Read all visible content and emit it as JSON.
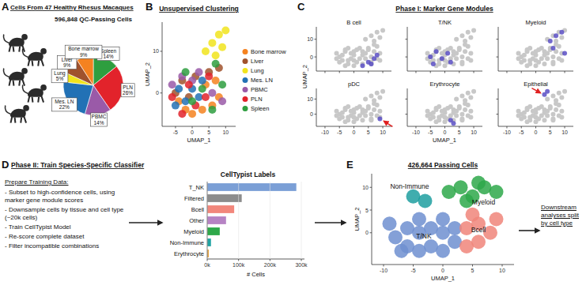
{
  "panel_labels": [
    "A",
    "B",
    "C",
    "D",
    "E"
  ],
  "panel_c": {
    "title": "Phase I: Marker Gene Modules",
    "xlabel": "UMAP_1",
    "ylabel": "UMAP_2"
  },
  "panel_d": {
    "title": "Phase II: Train Species-Specific Classifier",
    "list_title": "Prepare Training Data:",
    "items": [
      "- Subset to high-confidence cells, using marker gene module scores",
      "- Downsample cells by tissue and cell type (~20k cells)",
      "- Train CellTypist Model",
      "- Re-score complete dataset",
      "- Filter incompatible combinations"
    ]
  },
  "panel_e_note": "Downstream analyses split by cell type",
  "chart_data": [
    {
      "type": "pie",
      "title": "Cells From 47 Healthy Rhesus Macaques",
      "subtitle": "596,848 QC-Passing Cells",
      "categories": [
        "Spleen",
        "PLN",
        "PBMC",
        "Mes. LN",
        "Lung",
        "Liver",
        "Bone marrow"
      ],
      "values": [
        14,
        26,
        14,
        22,
        5,
        9,
        9
      ],
      "value_labels": [
        "14%",
        "26%",
        "14%",
        "22%",
        "5%",
        "9%",
        "9%"
      ],
      "colors": [
        "#2e9e3f",
        "#e2232b",
        "#9a5aa8",
        "#2271b5",
        "#f1e41d",
        "#a0522d",
        "#f58220"
      ],
      "data_labels": true
    },
    {
      "type": "scatter",
      "title": "Unsupervised Clustering",
      "xlabel": "UMAP_1",
      "ylabel": "UMAP_2",
      "xlim": [
        -9,
        13
      ],
      "ylim": [
        -8,
        17
      ],
      "xticks": [
        -5,
        0,
        5,
        10
      ],
      "yticks": [
        0,
        10
      ],
      "legend": "right",
      "series": [
        {
          "name": "Bone marrow",
          "color": "#f58220",
          "x": [
            -2,
            0,
            3,
            6,
            8,
            4,
            -4,
            7
          ],
          "values": [
            -4,
            -5,
            -4,
            -3,
            -1,
            2,
            -2,
            3
          ]
        },
        {
          "name": "Liver",
          "color": "#a0522d",
          "x": [
            -5,
            -3,
            1,
            -1,
            5,
            8
          ],
          "values": [
            0,
            3,
            4,
            -1,
            5,
            6
          ]
        },
        {
          "name": "Lung",
          "color": "#f1e41d",
          "x": [
            4,
            6,
            8,
            10,
            7,
            9
          ],
          "values": [
            10,
            12,
            14,
            15,
            9,
            11
          ]
        },
        {
          "name": "Mes. LN",
          "color": "#2271b5",
          "x": [
            -4,
            -2,
            0,
            2,
            -5,
            3
          ],
          "values": [
            1,
            -2,
            1,
            -1,
            -3,
            3
          ]
        },
        {
          "name": "PBMC",
          "color": "#9a5aa8",
          "x": [
            -3,
            0,
            2,
            6,
            9,
            -6
          ],
          "values": [
            4,
            3,
            5,
            0,
            -2,
            2
          ]
        },
        {
          "name": "PLN",
          "color": "#e2232b",
          "x": [
            -6,
            -1,
            1,
            4,
            -3,
            5
          ],
          "values": [
            -1,
            2,
            -3,
            -1,
            -5,
            4
          ]
        },
        {
          "name": "Spleen",
          "color": "#2e9e3f",
          "x": [
            -2,
            3,
            6,
            9,
            0,
            7
          ],
          "values": [
            5,
            1,
            -4,
            2,
            -2,
            7
          ]
        }
      ]
    },
    {
      "type": "scatter",
      "title": "B cell",
      "xlim": [
        -13,
        13
      ],
      "ylim": [
        -8,
        17
      ],
      "xticks": [
        -10,
        -5,
        0,
        5,
        10
      ],
      "yticks": [
        0,
        10
      ],
      "tick_labels": "y",
      "color": "#5b4fc4",
      "x": [
        3,
        5,
        7,
        6,
        8
      ],
      "values": [
        -5,
        -3,
        -1,
        -4,
        1
      ]
    },
    {
      "type": "scatter",
      "title": "T/NK",
      "xlim": [
        -13,
        13
      ],
      "ylim": [
        -8,
        17
      ],
      "xticks": [
        -10,
        -5,
        0,
        5,
        10
      ],
      "yticks": [
        0,
        10
      ],
      "tick_labels": false,
      "color": "#5b4fc4",
      "x": [
        -5,
        -3,
        -1,
        1,
        -4,
        2
      ],
      "values": [
        0,
        3,
        -1,
        2,
        -4,
        -3
      ]
    },
    {
      "type": "scatter",
      "title": "Myeloid",
      "xlim": [
        -13,
        13
      ],
      "ylim": [
        -8,
        17
      ],
      "xticks": [
        -10,
        -5,
        0,
        5,
        10
      ],
      "yticks": [
        0,
        10
      ],
      "tick_labels": false,
      "color": "#5b4fc4",
      "x": [
        5,
        7,
        9,
        6,
        10
      ],
      "values": [
        9,
        12,
        14,
        5,
        2
      ]
    },
    {
      "type": "scatter",
      "title": "pDC",
      "xlim": [
        -13,
        13
      ],
      "ylim": [
        -8,
        17
      ],
      "xticks": [
        -10,
        -5,
        0,
        5,
        10
      ],
      "yticks": [
        0,
        10
      ],
      "tick_labels": true,
      "color": "#5b4fc4",
      "x": [
        9
      ],
      "values": [
        -3
      ]
    },
    {
      "type": "scatter",
      "title": "Erythrocyte",
      "xlim": [
        -13,
        13
      ],
      "ylim": [
        -8,
        17
      ],
      "xticks": [
        -10,
        -5,
        0,
        5,
        10
      ],
      "yticks": [
        0,
        10
      ],
      "tick_labels": "x",
      "color": "#5b4fc4",
      "x": [
        2,
        3
      ],
      "values": [
        -4,
        -6
      ]
    },
    {
      "type": "scatter",
      "title": "Epithelial",
      "xlim": [
        -13,
        13
      ],
      "ylim": [
        -8,
        17
      ],
      "xticks": [
        -10,
        -5,
        0,
        5,
        10
      ],
      "yticks": [
        0,
        10
      ],
      "tick_labels": "x",
      "color": "#5b4fc4",
      "x": [
        3,
        4
      ],
      "values": [
        13,
        15
      ]
    },
    {
      "type": "bar",
      "title": "CellTypist Labels",
      "xlabel": "# Cells",
      "orientation": "horizontal",
      "categories": [
        "T_NK",
        "Filtered",
        "Bcell",
        "Other",
        "Myeloid",
        "Non-Immune",
        "Erythrocyte"
      ],
      "values": [
        284000,
        110000,
        86000,
        60000,
        40000,
        12000,
        5000
      ],
      "colors": [
        "#7b9fd6",
        "#8c8c8c",
        "#f2877c",
        "#b683c4",
        "#2ea84a",
        "#1fa3a3",
        "#e6a23c"
      ],
      "xlim": [
        0,
        310000
      ],
      "xticks": [
        {
          "value": 0,
          "label": "0k"
        },
        {
          "value": 100000,
          "label": "100k"
        },
        {
          "value": 200000,
          "label": "200k"
        },
        {
          "value": 300000,
          "label": "300k"
        }
      ]
    },
    {
      "type": "scatter",
      "title": "426,664 Passing Cells",
      "xlabel": "UMAP_1",
      "ylabel": "UMAP_2",
      "xlim": [
        -12,
        12
      ],
      "ylim": [
        -7,
        13
      ],
      "xticks": [
        -10,
        -5,
        0,
        5,
        10
      ],
      "yticks": [
        0,
        5,
        10
      ],
      "series": [
        {
          "name": "T/NK",
          "color": "#6f8fd0",
          "x": [
            -8,
            -6,
            -6,
            -4,
            -4,
            -4,
            -2,
            -2,
            0,
            0,
            0,
            2,
            2,
            -9,
            -7
          ],
          "values": [
            -1,
            -3,
            1,
            -4,
            0,
            3,
            -3,
            1,
            -4,
            0,
            3,
            -2,
            1,
            2,
            -4
          ]
        },
        {
          "name": "Bcell",
          "color": "#f0857a",
          "x": [
            4,
            4,
            6,
            6,
            8,
            9,
            5
          ],
          "values": [
            -3,
            1,
            -2,
            2,
            0,
            3,
            4
          ]
        },
        {
          "name": "Myeloid",
          "color": "#2ea84a",
          "x": [
            1,
            3,
            5,
            7,
            9,
            6,
            4
          ],
          "values": [
            9,
            10,
            8,
            10,
            9,
            11,
            7
          ]
        },
        {
          "name": "Non-Immune",
          "color": "#1e9fa0",
          "x": [
            -5,
            -3
          ],
          "values": [
            8,
            7
          ]
        }
      ]
    }
  ]
}
